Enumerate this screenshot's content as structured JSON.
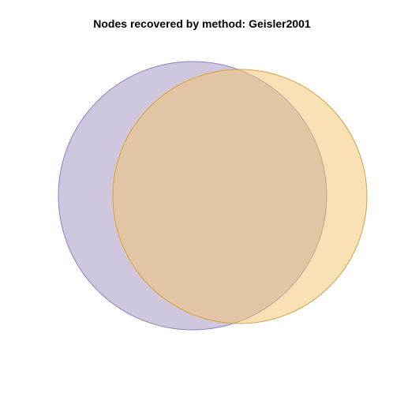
{
  "title": "Nodes recovered by method: Geisler2001",
  "diagram": {
    "type": "venn",
    "sets": [
      {
        "id": "A",
        "fill": "#9e8fbd",
        "fill_opacity": 0.5,
        "stroke": "#8c7fc0"
      },
      {
        "id": "B",
        "fill": "#f3c36b",
        "fill_opacity": 0.5,
        "stroke": "#d9a032"
      }
    ]
  }
}
